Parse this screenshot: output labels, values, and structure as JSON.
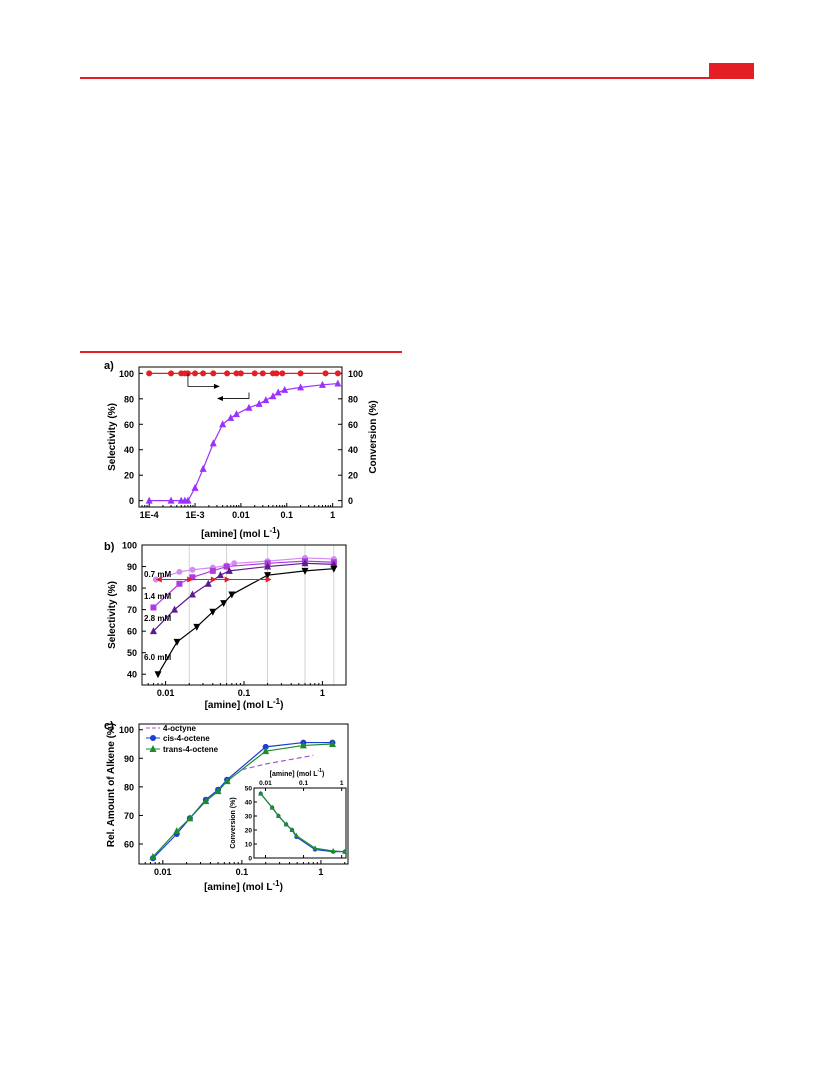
{
  "colors": {
    "accent_red": "#e31e24",
    "red_series": "#e31e24",
    "purple_series": "#9b30ff",
    "light_violet": "#d38cf2",
    "violet": "#b03adf",
    "dark_purple": "#5a1b8c",
    "black": "#000000",
    "blue": "#1b3cd8",
    "green": "#1a8c2c",
    "dashed_purple": "#9b59d0"
  },
  "chart_data": [
    {
      "panel_label": "a)",
      "type": "scatter",
      "xlabel": "[amine] (mol L",
      "xlabel_sup": "-1",
      "xlabel_close": ")",
      "ylabel_left": "Selectivity (%)",
      "ylabel_right": "Conversion (%)",
      "xscale": "log",
      "xlim": [
        6e-05,
        1.6
      ],
      "xticks": [
        0.0001,
        0.001,
        0.01,
        0.1,
        1
      ],
      "xtick_labels": [
        "1E-4",
        "1E-3",
        "0.01",
        "0.1",
        "1"
      ],
      "ylim": [
        -5,
        105
      ],
      "yticks": [
        0,
        20,
        40,
        60,
        80,
        100
      ],
      "ytick_labels": [
        "0",
        "20",
        "40",
        "60",
        "80",
        "100"
      ],
      "series": [
        {
          "axis": "left",
          "marker": "circle",
          "color": "#e31e24",
          "x": [
            0.0001,
            0.0003,
            0.0005,
            0.0006,
            0.0007,
            0.001,
            0.0015,
            0.0025,
            0.005,
            0.008,
            0.01,
            0.02,
            0.03,
            0.05,
            0.06,
            0.08,
            0.2,
            0.7,
            1.3
          ],
          "y": [
            100,
            100,
            100,
            100,
            100,
            100,
            100,
            100,
            100,
            100,
            100,
            100,
            100,
            100,
            100,
            100,
            100,
            100,
            100
          ]
        },
        {
          "axis": "right",
          "marker": "triangle",
          "color": "#9b30ff",
          "x": [
            0.0001,
            0.0003,
            0.0005,
            0.0006,
            0.0007,
            0.001,
            0.0015,
            0.0025,
            0.004,
            0.006,
            0.008,
            0.015,
            0.025,
            0.035,
            0.05,
            0.065,
            0.09,
            0.2,
            0.6,
            1.3
          ],
          "y": [
            0,
            0,
            0,
            0,
            0,
            10,
            25,
            45,
            60,
            65,
            68,
            73,
            76,
            79,
            82,
            85,
            87,
            89,
            91,
            92
          ]
        }
      ]
    },
    {
      "panel_label": "b)",
      "type": "line",
      "xlabel": "[amine] (mol L",
      "xlabel_sup": "-1",
      "xlabel_close": ")",
      "ylabel": "Selectivity (%)",
      "xscale": "log",
      "xlim": [
        0.005,
        2
      ],
      "xticks": [
        0.01,
        0.1,
        1
      ],
      "xtick_labels": [
        "0.01",
        "0.1",
        "1"
      ],
      "ylim": [
        35,
        100
      ],
      "yticks": [
        40,
        50,
        60,
        70,
        80,
        90,
        100
      ],
      "ytick_labels": [
        "40",
        "50",
        "60",
        "70",
        "80",
        "90",
        "100"
      ],
      "vgrid": [
        0.02,
        0.06,
        0.2,
        0.6,
        1.4
      ],
      "annotations": [
        "0.7 mM",
        "1.4 mM",
        "2.8 mM",
        "6.0 mM"
      ],
      "series": [
        {
          "marker": "circle",
          "color": "#d38cf2",
          "x": [
            0.0075,
            0.015,
            0.022,
            0.04,
            0.06,
            0.075,
            0.2,
            0.6,
            1.4
          ],
          "y": [
            84,
            87.5,
            88.5,
            89.5,
            90.5,
            91.5,
            92.5,
            94,
            93.5
          ]
        },
        {
          "marker": "square",
          "color": "#b03adf",
          "x": [
            0.007,
            0.015,
            0.022,
            0.04,
            0.06,
            0.2,
            0.6,
            1.4
          ],
          "y": [
            71,
            82,
            85,
            88,
            90,
            91.5,
            92.5,
            92
          ]
        },
        {
          "marker": "triangle",
          "color": "#5a1b8c",
          "x": [
            0.007,
            0.013,
            0.022,
            0.035,
            0.05,
            0.065,
            0.2,
            0.6,
            1.4
          ],
          "y": [
            60,
            70,
            77,
            82,
            86,
            88,
            90,
            91.5,
            91
          ]
        },
        {
          "marker": "triangle-down",
          "color": "#000000",
          "x": [
            0.008,
            0.014,
            0.025,
            0.04,
            0.055,
            0.07,
            0.2,
            0.6,
            1.4
          ],
          "y": [
            40,
            55,
            62,
            69,
            73,
            77,
            86,
            88,
            89
          ]
        }
      ],
      "arrow_y": 84,
      "arrow_x": [
        0.0075,
        0.2
      ]
    },
    {
      "panel_label": "c)",
      "type": "line",
      "xlabel": "[amine] (mol L",
      "xlabel_sup": "-1",
      "xlabel_close": ")",
      "ylabel": "Rel. Amount of Alkene (%)",
      "xscale": "log",
      "xlim": [
        0.005,
        2.2
      ],
      "xticks": [
        0.01,
        0.1,
        1
      ],
      "xtick_labels": [
        "0.01",
        "0.1",
        "1"
      ],
      "ylim": [
        53,
        102
      ],
      "yticks": [
        60,
        70,
        80,
        90,
        100
      ],
      "ytick_labels": [
        "60",
        "70",
        "80",
        "90",
        "100"
      ],
      "legend": [
        "4-octyne",
        "cis-4-octene",
        "trans-4-octene"
      ],
      "series": [
        {
          "name": "4-octyne",
          "style": "dashed",
          "color": "#9b59d0",
          "in_inset": true,
          "x": [
            0.02,
            0.05,
            0.1,
            0.2,
            0.5,
            0.8
          ],
          "y": [
            75,
            82,
            86,
            88,
            90,
            91
          ]
        },
        {
          "name": "cis-4-octene",
          "marker": "circle",
          "color": "#1b3cd8",
          "x": [
            0.0075,
            0.015,
            0.022,
            0.035,
            0.05,
            0.065,
            0.2,
            0.6,
            1.4
          ],
          "y": [
            55,
            63.5,
            69,
            75.5,
            79,
            82.5,
            94,
            95.5,
            95.5
          ]
        },
        {
          "name": "trans-4-octene",
          "marker": "triangle",
          "color": "#1a8c2c",
          "x": [
            0.0075,
            0.015,
            0.022,
            0.035,
            0.05,
            0.065,
            0.2,
            0.6,
            1.4
          ],
          "y": [
            55.5,
            64.5,
            69,
            75,
            78.5,
            82,
            92.5,
            94.5,
            95
          ]
        }
      ],
      "inset": {
        "xlabel": "[amine] (mol L",
        "xlabel_sup": "-1",
        "xlabel_close": ")",
        "ylabel": "Conversion (%)",
        "xscale": "log",
        "xlim": [
          0.005,
          1.3
        ],
        "xticks": [
          0.01,
          0.1,
          1
        ],
        "xtick_labels": [
          "0.01",
          "0.1",
          "1"
        ],
        "ylim": [
          0,
          50
        ],
        "yticks": [
          0,
          10,
          20,
          30,
          40,
          50
        ],
        "ytick_labels": [
          "0",
          "10",
          "20",
          "30",
          "40",
          "50"
        ],
        "series": [
          {
            "color": "#1b3cd8",
            "marker": "circle",
            "x": [
              0.0075,
              0.015,
              0.022,
              0.035,
              0.05,
              0.065,
              0.2,
              0.6,
              1.2
            ],
            "y": [
              46,
              36,
              30,
              24,
              20,
              15,
              6,
              4.5,
              4.5
            ]
          },
          {
            "color": "#1a8c2c",
            "marker": "triangle",
            "x": [
              0.0075,
              0.015,
              0.022,
              0.035,
              0.05,
              0.065,
              0.2,
              0.6,
              1.2
            ],
            "y": [
              46,
              36,
              30,
              24,
              20,
              16,
              7,
              5,
              4.5
            ]
          }
        ]
      }
    }
  ]
}
